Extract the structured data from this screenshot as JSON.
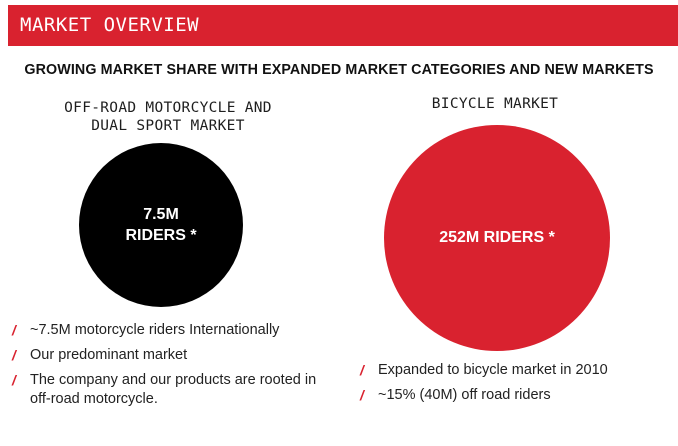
{
  "header": {
    "title": "MARKET OVERVIEW"
  },
  "subtitle": "GROWING MARKET SHARE WITH EXPANDED MARKET CATEGORIES AND NEW MARKETS",
  "left": {
    "title_line1": "OFF-ROAD MOTORCYCLE AND",
    "title_line2": "DUAL SPORT MARKET",
    "circle_line1": "7.5M",
    "circle_line2": "RIDERS *",
    "bullets": [
      "~7.5M motorcycle riders Internationally",
      "Our predominant market",
      "The company and our products are rooted in off-road motorcycle."
    ]
  },
  "right": {
    "title": "BICYCLE MARKET",
    "circle_text": "252M RIDERS *",
    "bullets": [
      "Expanded to bicycle market in 2010",
      "~15% (40M) off road riders"
    ]
  },
  "bullet_glyph": "/",
  "colors": {
    "accent": "#d9222f",
    "dark": "#000000",
    "text": "#1e1e1e"
  }
}
